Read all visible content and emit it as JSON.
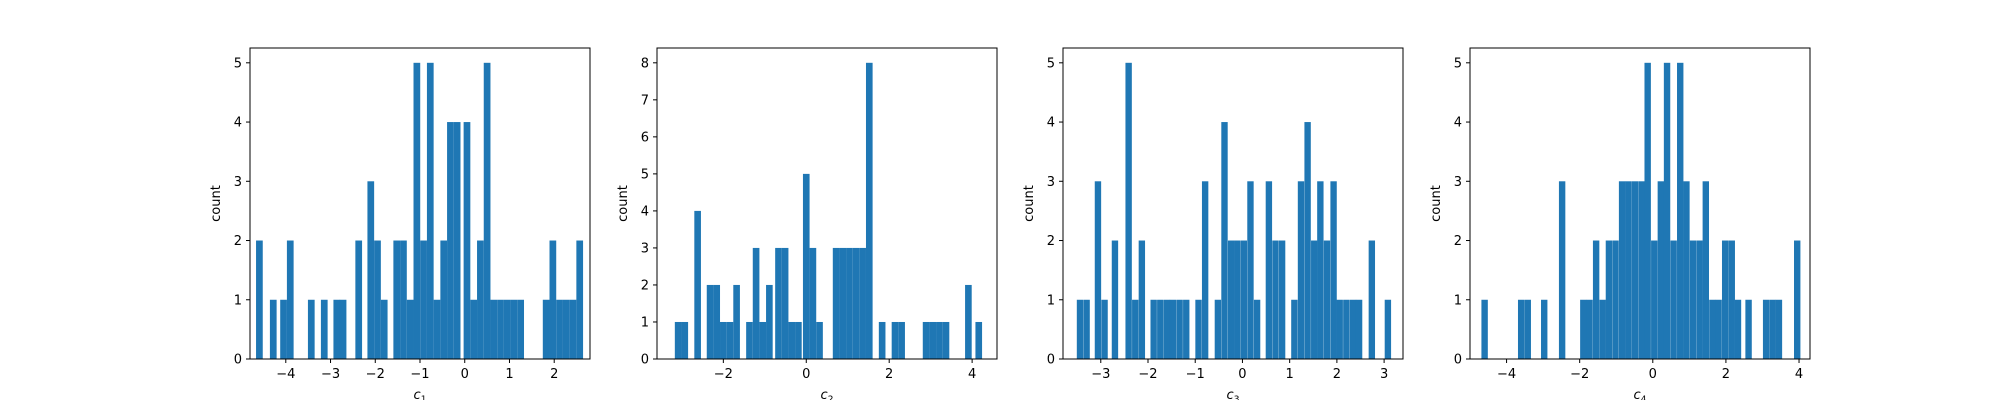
{
  "colors": {
    "bar": "#1f77b4",
    "axes": "#000000",
    "background": "#ffffff"
  },
  "chart_data": [
    {
      "type": "histogram",
      "xlabel_base": "c",
      "xlabel_sub": "1",
      "ylabel": "count",
      "xlim": [
        -4.8,
        2.8
      ],
      "ylim": [
        0,
        5.25
      ],
      "xticks": [
        -4,
        -3,
        -2,
        -1,
        0,
        1,
        2
      ],
      "yticks": [
        0,
        1,
        2,
        3,
        4,
        5
      ],
      "bin_width": 0.15,
      "bars": [
        {
          "x": -4.59,
          "count": 2
        },
        {
          "x": -4.28,
          "count": 1
        },
        {
          "x": -4.05,
          "count": 1
        },
        {
          "x": -3.9,
          "count": 2
        },
        {
          "x": -3.43,
          "count": 1
        },
        {
          "x": -3.14,
          "count": 1
        },
        {
          "x": -2.86,
          "count": 1
        },
        {
          "x": -2.72,
          "count": 1
        },
        {
          "x": -2.37,
          "count": 2
        },
        {
          "x": -2.1,
          "count": 3
        },
        {
          "x": -1.95,
          "count": 2
        },
        {
          "x": -1.8,
          "count": 1
        },
        {
          "x": -1.52,
          "count": 2
        },
        {
          "x": -1.37,
          "count": 2
        },
        {
          "x": -1.22,
          "count": 1
        },
        {
          "x": -1.07,
          "count": 5
        },
        {
          "x": -0.92,
          "count": 2
        },
        {
          "x": -0.77,
          "count": 5
        },
        {
          "x": -0.62,
          "count": 1
        },
        {
          "x": -0.47,
          "count": 2
        },
        {
          "x": -0.32,
          "count": 4
        },
        {
          "x": -0.17,
          "count": 4
        },
        {
          "x": 0.05,
          "count": 4
        },
        {
          "x": 0.2,
          "count": 1
        },
        {
          "x": 0.35,
          "count": 2
        },
        {
          "x": 0.5,
          "count": 5
        },
        {
          "x": 0.65,
          "count": 1
        },
        {
          "x": 0.8,
          "count": 1
        },
        {
          "x": 0.95,
          "count": 1
        },
        {
          "x": 1.1,
          "count": 1
        },
        {
          "x": 1.25,
          "count": 1
        },
        {
          "x": 1.82,
          "count": 1
        },
        {
          "x": 1.97,
          "count": 2
        },
        {
          "x": 2.12,
          "count": 1
        },
        {
          "x": 2.27,
          "count": 1
        },
        {
          "x": 2.42,
          "count": 1
        },
        {
          "x": 2.57,
          "count": 2
        }
      ]
    },
    {
      "type": "histogram",
      "xlabel_base": "c",
      "xlabel_sub": "2",
      "ylabel": "count",
      "xlim": [
        -3.6,
        4.6
      ],
      "ylim": [
        0,
        8.4
      ],
      "xticks": [
        -2,
        0,
        2,
        4
      ],
      "yticks": [
        0,
        1,
        2,
        3,
        4,
        5,
        6,
        7,
        8
      ],
      "bin_width": 0.16,
      "bars": [
        {
          "x": -3.09,
          "count": 1
        },
        {
          "x": -2.93,
          "count": 1
        },
        {
          "x": -2.62,
          "count": 4
        },
        {
          "x": -2.32,
          "count": 2
        },
        {
          "x": -2.16,
          "count": 2
        },
        {
          "x": -2.0,
          "count": 1
        },
        {
          "x": -1.84,
          "count": 1
        },
        {
          "x": -1.68,
          "count": 2
        },
        {
          "x": -1.37,
          "count": 1
        },
        {
          "x": -1.21,
          "count": 3
        },
        {
          "x": -1.05,
          "count": 1
        },
        {
          "x": -0.89,
          "count": 2
        },
        {
          "x": -0.67,
          "count": 3
        },
        {
          "x": -0.51,
          "count": 3
        },
        {
          "x": -0.35,
          "count": 1
        },
        {
          "x": -0.19,
          "count": 1
        },
        {
          "x": 0.0,
          "count": 5
        },
        {
          "x": 0.16,
          "count": 3
        },
        {
          "x": 0.32,
          "count": 1
        },
        {
          "x": 0.72,
          "count": 3
        },
        {
          "x": 0.88,
          "count": 3
        },
        {
          "x": 1.04,
          "count": 3
        },
        {
          "x": 1.2,
          "count": 3
        },
        {
          "x": 1.36,
          "count": 3
        },
        {
          "x": 1.52,
          "count": 8
        },
        {
          "x": 1.83,
          "count": 1
        },
        {
          "x": 2.14,
          "count": 1
        },
        {
          "x": 2.3,
          "count": 1
        },
        {
          "x": 2.89,
          "count": 1
        },
        {
          "x": 3.05,
          "count": 1
        },
        {
          "x": 3.21,
          "count": 1
        },
        {
          "x": 3.37,
          "count": 1
        },
        {
          "x": 3.91,
          "count": 2
        },
        {
          "x": 4.16,
          "count": 1
        }
      ]
    },
    {
      "type": "histogram",
      "xlabel_base": "c",
      "xlabel_sub": "3",
      "ylabel": "count",
      "xlim": [
        -3.8,
        3.4
      ],
      "ylim": [
        0,
        5.25
      ],
      "xticks": [
        -3,
        -2,
        -1,
        0,
        1,
        2,
        3
      ],
      "yticks": [
        0,
        1,
        2,
        3,
        4,
        5
      ],
      "bin_width": 0.135,
      "bars": [
        {
          "x": -3.44,
          "count": 1
        },
        {
          "x": -3.3,
          "count": 1
        },
        {
          "x": -3.06,
          "count": 3
        },
        {
          "x": -2.92,
          "count": 1
        },
        {
          "x": -2.7,
          "count": 2
        },
        {
          "x": -2.41,
          "count": 5
        },
        {
          "x": -2.27,
          "count": 1
        },
        {
          "x": -2.13,
          "count": 2
        },
        {
          "x": -1.88,
          "count": 1
        },
        {
          "x": -1.74,
          "count": 1
        },
        {
          "x": -1.6,
          "count": 1
        },
        {
          "x": -1.47,
          "count": 1
        },
        {
          "x": -1.33,
          "count": 1
        },
        {
          "x": -1.19,
          "count": 1
        },
        {
          "x": -0.93,
          "count": 1
        },
        {
          "x": -0.79,
          "count": 3
        },
        {
          "x": -0.52,
          "count": 1
        },
        {
          "x": -0.38,
          "count": 4
        },
        {
          "x": -0.24,
          "count": 2
        },
        {
          "x": -0.11,
          "count": 2
        },
        {
          "x": 0.03,
          "count": 2
        },
        {
          "x": 0.17,
          "count": 3
        },
        {
          "x": 0.31,
          "count": 1
        },
        {
          "x": 0.56,
          "count": 3
        },
        {
          "x": 0.7,
          "count": 2
        },
        {
          "x": 0.84,
          "count": 2
        },
        {
          "x": 1.1,
          "count": 1
        },
        {
          "x": 1.24,
          "count": 3
        },
        {
          "x": 1.38,
          "count": 4
        },
        {
          "x": 1.52,
          "count": 2
        },
        {
          "x": 1.65,
          "count": 3
        },
        {
          "x": 1.79,
          "count": 2
        },
        {
          "x": 1.93,
          "count": 3
        },
        {
          "x": 2.06,
          "count": 1
        },
        {
          "x": 2.2,
          "count": 1
        },
        {
          "x": 2.34,
          "count": 1
        },
        {
          "x": 2.47,
          "count": 1
        },
        {
          "x": 2.74,
          "count": 2
        },
        {
          "x": 3.08,
          "count": 1
        }
      ]
    },
    {
      "type": "histogram",
      "xlabel_base": "c",
      "xlabel_sub": "4",
      "ylabel": "count",
      "xlim": [
        -5.0,
        4.3
      ],
      "ylim": [
        0,
        5.25
      ],
      "xticks": [
        -4,
        -2,
        0,
        2,
        4
      ],
      "yticks": [
        0,
        1,
        2,
        3,
        4,
        5
      ],
      "bin_width": 0.175,
      "bars": [
        {
          "x": -4.6,
          "count": 1
        },
        {
          "x": -3.6,
          "count": 1
        },
        {
          "x": -3.42,
          "count": 1
        },
        {
          "x": -2.97,
          "count": 1
        },
        {
          "x": -2.48,
          "count": 3
        },
        {
          "x": -1.9,
          "count": 1
        },
        {
          "x": -1.73,
          "count": 1
        },
        {
          "x": -1.55,
          "count": 2
        },
        {
          "x": -1.37,
          "count": 1
        },
        {
          "x": -1.2,
          "count": 2
        },
        {
          "x": -1.02,
          "count": 2
        },
        {
          "x": -0.84,
          "count": 3
        },
        {
          "x": -0.67,
          "count": 3
        },
        {
          "x": -0.49,
          "count": 3
        },
        {
          "x": -0.31,
          "count": 3
        },
        {
          "x": -0.14,
          "count": 5
        },
        {
          "x": 0.04,
          "count": 2
        },
        {
          "x": 0.22,
          "count": 3
        },
        {
          "x": 0.39,
          "count": 5
        },
        {
          "x": 0.57,
          "count": 2
        },
        {
          "x": 0.75,
          "count": 5
        },
        {
          "x": 0.92,
          "count": 3
        },
        {
          "x": 1.1,
          "count": 2
        },
        {
          "x": 1.28,
          "count": 2
        },
        {
          "x": 1.45,
          "count": 3
        },
        {
          "x": 1.63,
          "count": 1
        },
        {
          "x": 1.8,
          "count": 1
        },
        {
          "x": 1.98,
          "count": 2
        },
        {
          "x": 2.16,
          "count": 2
        },
        {
          "x": 2.33,
          "count": 1
        },
        {
          "x": 2.62,
          "count": 1
        },
        {
          "x": 3.1,
          "count": 1
        },
        {
          "x": 3.28,
          "count": 1
        },
        {
          "x": 3.45,
          "count": 1
        },
        {
          "x": 3.95,
          "count": 2
        }
      ]
    }
  ]
}
